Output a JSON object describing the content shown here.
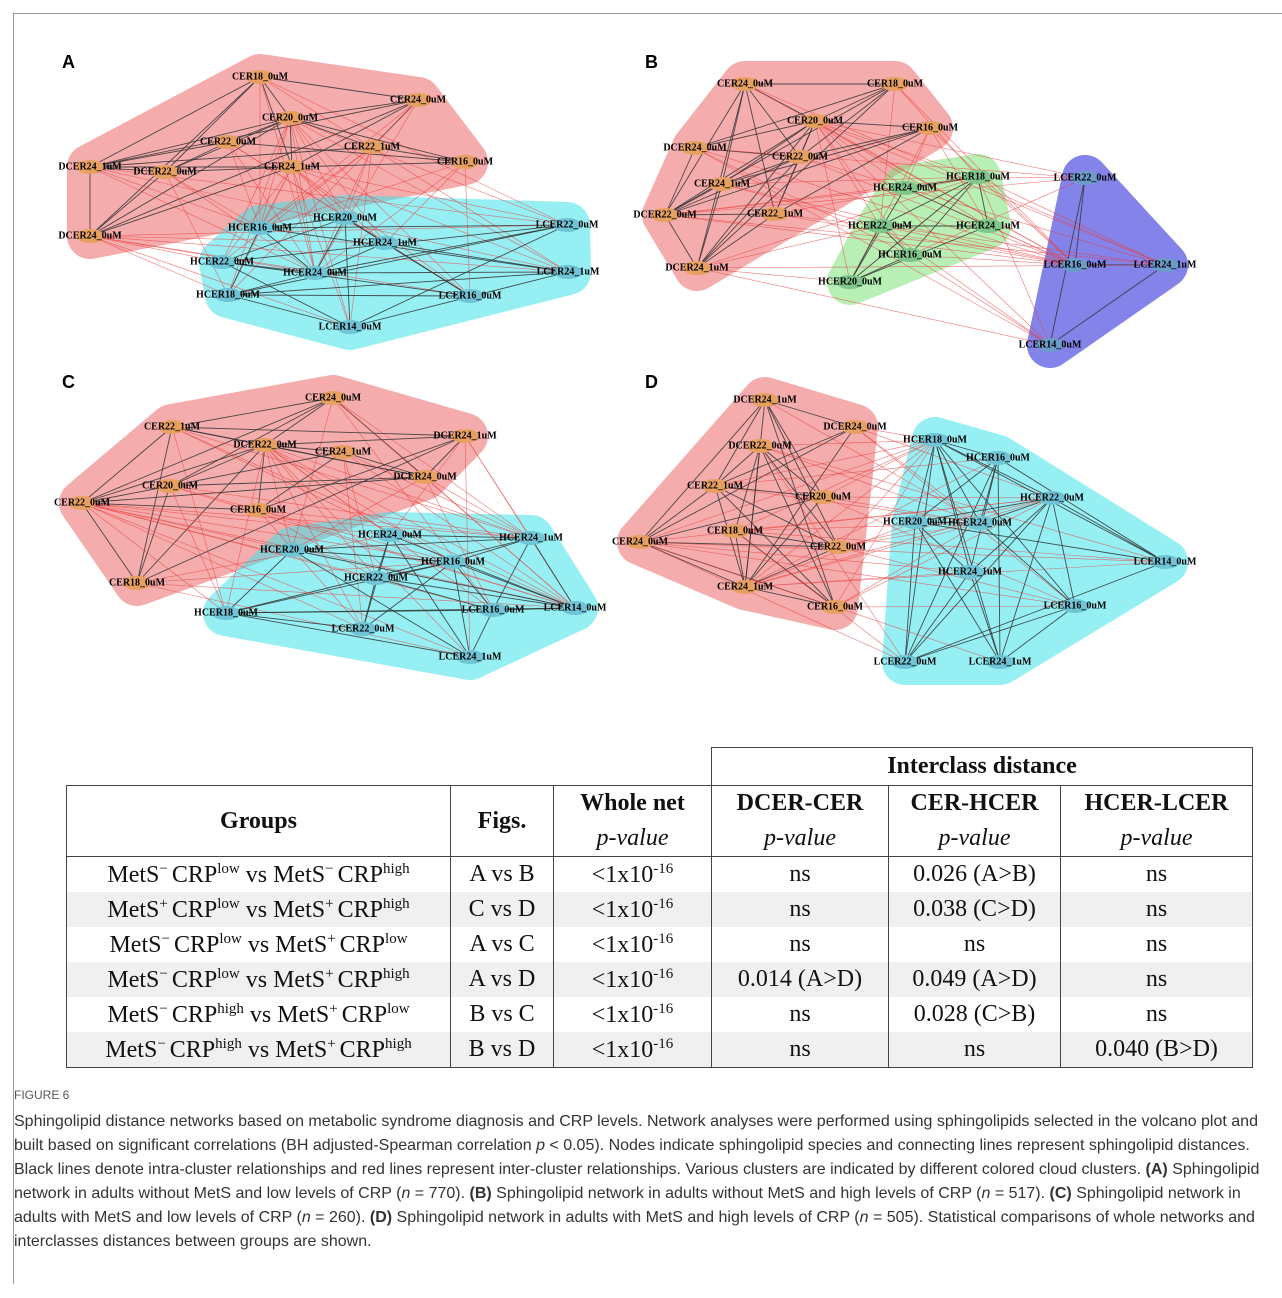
{
  "panels": [
    {
      "label": "A",
      "nodes": [
        "CER18_0uM",
        "CER24_0uM",
        "CER20_0uM",
        "CER22_0uM",
        "CER22_1uM",
        "DCER24_1uM",
        "DCER22_0uM",
        "CER24_1uM",
        "CER16_0uM",
        "HCER20_0uM",
        "HCER16_0uM",
        "LCER22_0uM",
        "DCER24_0uM",
        "HCER24_1uM",
        "HCER22_0uM",
        "HCER24_0uM",
        "LCER24_1uM",
        "HCER18_0uM",
        "LCER16_0uM",
        "LCER14_0uM"
      ]
    },
    {
      "label": "B",
      "nodes": [
        "CER24_0uM",
        "CER18_0uM",
        "CER20_0uM",
        "CER16_0uM",
        "DCER24_0uM",
        "CER22_0uM",
        "CER24_1uM",
        "HCER18_0uM",
        "HCER24_0uM",
        "LCER22_0uM",
        "DCER22_0uM",
        "CER22_1uM",
        "HCER22_0uM",
        "HCER24_1uM",
        "HCER16_0uM",
        "LCER16_0uM",
        "LCER24_1uM",
        "DCER24_1uM",
        "HCER20_0uM",
        "LCER14_0uM"
      ]
    },
    {
      "label": "C",
      "nodes": [
        "CER24_0uM",
        "CER22_1uM",
        "DCER22_0uM",
        "CER24_1uM",
        "DCER24_1uM",
        "DCER24_0uM",
        "CER20_0uM",
        "CER22_0uM",
        "CER16_0uM",
        "HCER24_0uM",
        "HCER24_1uM",
        "HCER20_0uM",
        "HCER16_0uM",
        "HCER22_0uM",
        "CER18_0uM",
        "LCER14_0uM",
        "LCER16_0uM",
        "HCER18_0uM",
        "LCER22_0uM",
        "LCER24_1uM"
      ]
    },
    {
      "label": "D",
      "nodes": [
        "DCER24_1uM",
        "DCER24_0uM",
        "HCER18_0uM",
        "DCER22_0uM",
        "HCER16_0uM",
        "CER22_1uM",
        "CER20_0uM",
        "HCER22_0uM",
        "CER18_0uM",
        "HCER20_0uM",
        "HCER24_0uM",
        "CER22_0uM",
        "CER24_0uM",
        "LCER14_0uM",
        "HCER24_1uM",
        "CER24_1uM",
        "CER16_0uM",
        "LCER16_0uM",
        "LCER22_0uM",
        "LCER24_1uM"
      ]
    }
  ],
  "table": {
    "header": {
      "groups": "Groups",
      "figs": "Figs.",
      "whole_net": "Whole net",
      "p_value": "p-value",
      "interclass": "Interclass distance",
      "columns": [
        "DCER-CER",
        "CER-HCER",
        "HCER-LCER"
      ]
    },
    "rows": [
      {
        "group": [
          "MetS",
          "−",
          "CRP",
          "low",
          "vs",
          "MetS",
          "−",
          "CRP",
          "high"
        ],
        "figs": "A vs B",
        "whole": [
          "<1x10",
          "-16"
        ],
        "cells": [
          "ns",
          "0.026 (A>B)",
          "ns"
        ]
      },
      {
        "group": [
          "MetS",
          "+",
          "CRP",
          "low",
          "vs",
          "MetS",
          "+",
          "CRP",
          "high"
        ],
        "figs": "C vs D",
        "whole": [
          "<1x10",
          "-16"
        ],
        "cells": [
          "ns",
          "0.038 (C>D)",
          "ns"
        ]
      },
      {
        "group": [
          "MetS",
          "−",
          "CRP",
          "low",
          "vs",
          "MetS",
          "+",
          "CRP",
          "low"
        ],
        "figs": "A vs C",
        "whole": [
          "<1x10",
          "-16"
        ],
        "cells": [
          "ns",
          "ns",
          "ns"
        ]
      },
      {
        "group": [
          "MetS",
          "−",
          "CRP",
          "low",
          "vs",
          "MetS",
          "+",
          "CRP",
          "high"
        ],
        "figs": "A vs D",
        "whole": [
          "<1x10",
          "-16"
        ],
        "cells": [
          "0.014 (A>D)",
          "0.049 (A>D)",
          "ns"
        ]
      },
      {
        "group": [
          "MetS",
          "−",
          "CRP",
          "high",
          "vs",
          "MetS",
          "+",
          "CRP",
          "low"
        ],
        "figs": "B vs C",
        "whole": [
          "<1x10",
          "-16"
        ],
        "cells": [
          "ns",
          "0.028 (C>B)",
          "ns"
        ]
      },
      {
        "group": [
          "MetS",
          "−",
          "CRP",
          "high",
          "vs",
          "MetS",
          "+",
          "CRP",
          "high"
        ],
        "figs": "B vs D",
        "whole": [
          "<1x10",
          "-16"
        ],
        "cells": [
          "ns",
          "ns",
          "0.040 (B>D)"
        ]
      }
    ]
  },
  "caption": {
    "label": "FIGURE 6",
    "segments": [
      "Sphingolipid distance networks based on metabolic syndrome diagnosis and CRP levels. Network analyses were performed using sphingolipids selected in the volcano plot and built based on significant correlations (BH adjusted-Spearman correlation ",
      "p",
      " < 0.05). Nodes indicate sphingolipid species and connecting lines represent sphingolipid distances. Black lines denote intra-cluster relationships and red lines represent inter-cluster relationships. Various clusters are indicated by different colored cloud clusters. ",
      "(A)",
      " Sphingolipid network in adults without MetS and low levels of CRP (",
      "n",
      " = 770). ",
      "(B)",
      " Sphingolipid network in adults without MetS and high levels of CRP (",
      "n",
      " = 517). ",
      "(C)",
      " Sphingolipid network in adults with MetS and low levels of CRP (",
      "n",
      " = 260). ",
      "(D)",
      " Sphingolipid network in adults with MetS and high levels of CRP (",
      "n",
      " = 505). Statistical comparisons of whole networks and interclasses distances between groups are shown."
    ]
  }
}
